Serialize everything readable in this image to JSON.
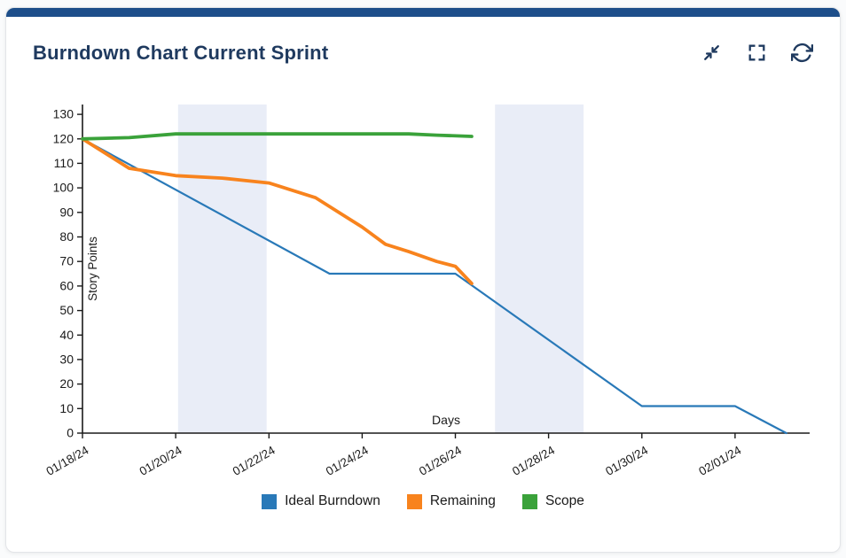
{
  "card": {
    "title": "Burndown Chart Current Sprint"
  },
  "toolbar": {
    "icons": [
      "collapse-icon",
      "fullscreen-icon",
      "refresh-icon"
    ]
  },
  "colors": {
    "accent_bar": "#1d4e8a",
    "title": "#1f3a5f",
    "icon": "#1f3a5f",
    "ideal": "#2979b8",
    "remaining": "#f8831d",
    "scope": "#3aa23a",
    "weekend_band": "#e9edf7",
    "axis": "#1a1a1a",
    "tick_text": "#1a1a1a"
  },
  "chart_data": {
    "type": "line",
    "title": "Burndown Chart Current Sprint",
    "xlabel": "Days",
    "ylabel": "Story Points",
    "x_tick_labels": [
      "01/18/24",
      "01/20/24",
      "01/22/24",
      "01/24/24",
      "01/26/24",
      "01/28/24",
      "01/30/24",
      "02/01/24"
    ],
    "x_tick_days": [
      0,
      2,
      4,
      6,
      8,
      10,
      12,
      14
    ],
    "xlim": [
      0,
      15.6
    ],
    "ylim": [
      0,
      134
    ],
    "y_ticks": [
      0,
      10,
      20,
      30,
      40,
      50,
      60,
      70,
      80,
      90,
      100,
      110,
      120,
      130
    ],
    "grid": false,
    "legend_position": "bottom",
    "weekend_bands": [
      [
        2.05,
        3.95
      ],
      [
        8.85,
        10.75
      ]
    ],
    "series": [
      {
        "name": "Ideal Burndown",
        "slug": "ideal-burndown",
        "color_key": "ideal",
        "width": 2.2,
        "points": [
          [
            0,
            120
          ],
          [
            5.3,
            65
          ],
          [
            8,
            65
          ],
          [
            12,
            11
          ],
          [
            14,
            11
          ],
          [
            15.1,
            0
          ]
        ]
      },
      {
        "name": "Remaining",
        "slug": "remaining",
        "color_key": "remaining",
        "width": 3.8,
        "points": [
          [
            0,
            120
          ],
          [
            1,
            108
          ],
          [
            2,
            105
          ],
          [
            3,
            104
          ],
          [
            4,
            102
          ],
          [
            5,
            96
          ],
          [
            6,
            84
          ],
          [
            6.5,
            77
          ],
          [
            7,
            74
          ],
          [
            7.6,
            70
          ],
          [
            8,
            68
          ],
          [
            8.35,
            61
          ]
        ]
      },
      {
        "name": "Scope",
        "slug": "scope",
        "color_key": "scope",
        "width": 3.8,
        "points": [
          [
            0,
            120
          ],
          [
            1,
            120.5
          ],
          [
            2,
            122
          ],
          [
            3,
            122
          ],
          [
            4,
            122
          ],
          [
            5,
            122
          ],
          [
            6,
            122
          ],
          [
            7,
            122
          ],
          [
            7.6,
            121.5
          ],
          [
            8.35,
            121
          ]
        ]
      }
    ]
  },
  "legend": [
    {
      "label": "Ideal Burndown",
      "color_key": "ideal"
    },
    {
      "label": "Remaining",
      "color_key": "remaining"
    },
    {
      "label": "Scope",
      "color_key": "scope"
    }
  ]
}
